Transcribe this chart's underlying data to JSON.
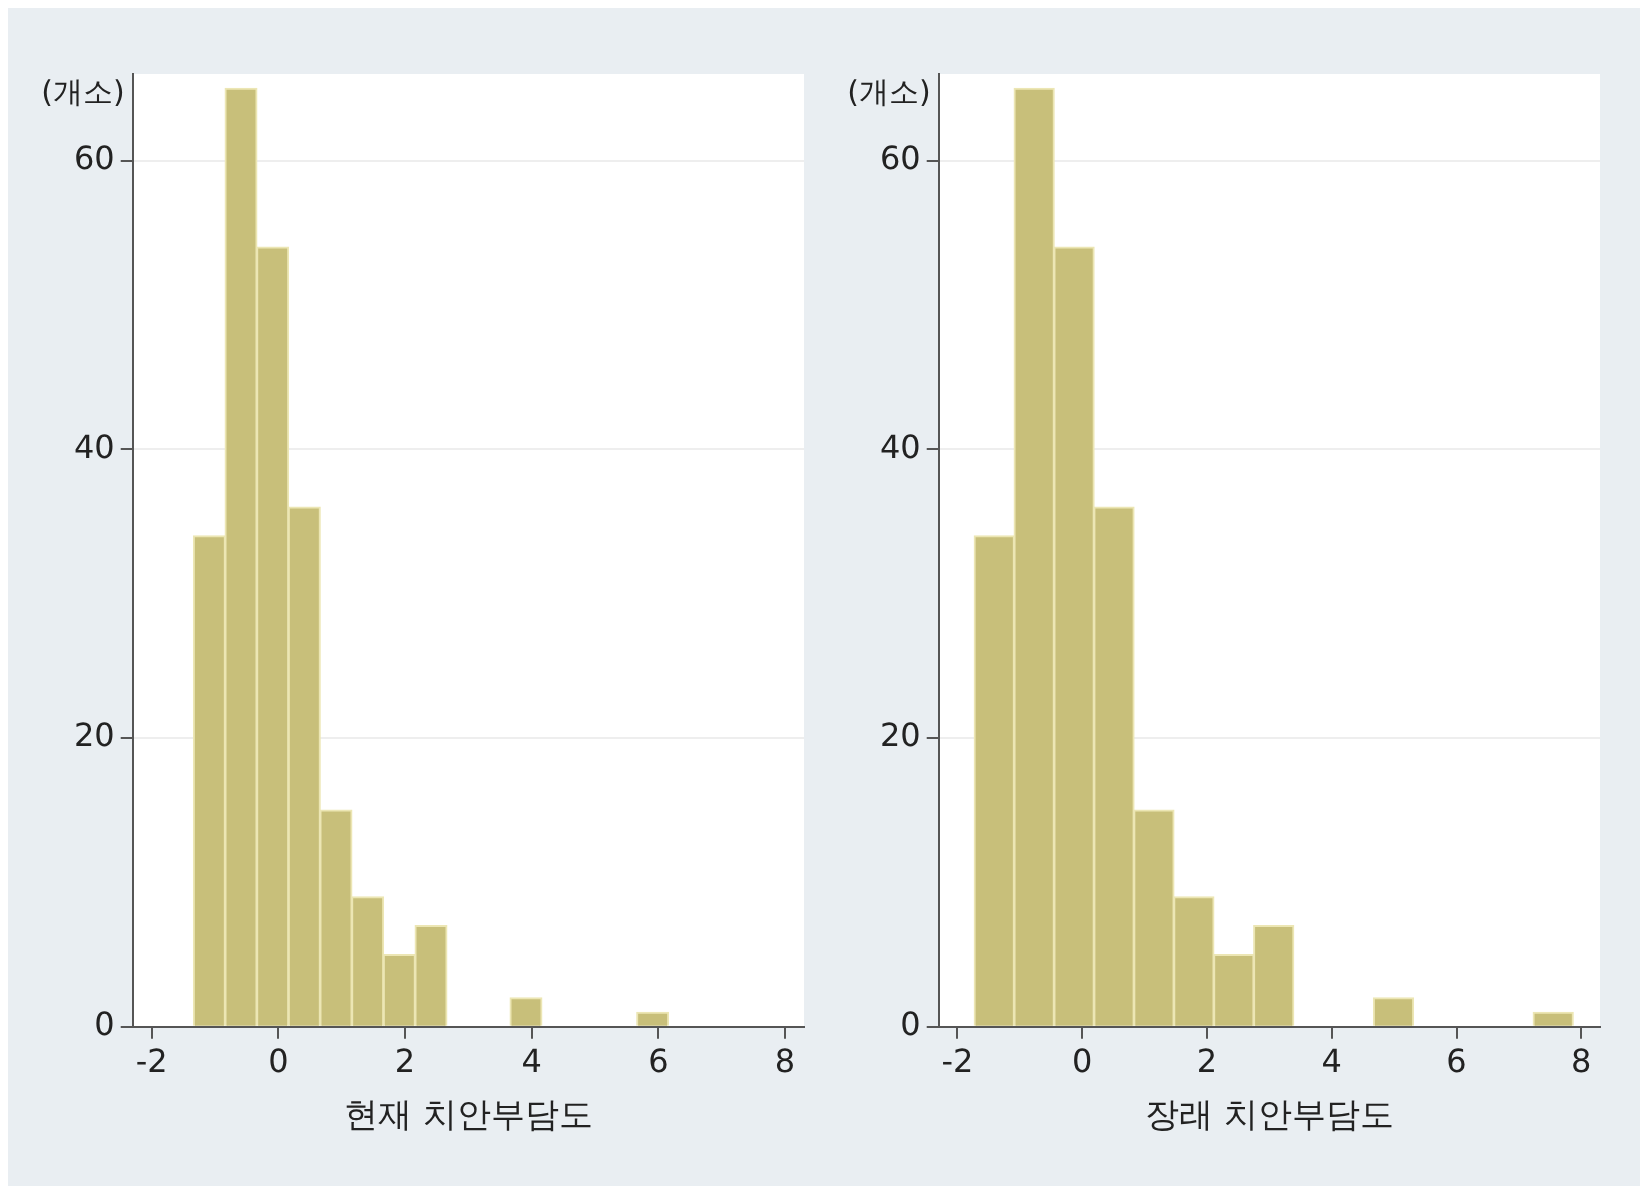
{
  "chart_data": [
    {
      "type": "histogram",
      "xlabel": "현재 치안부담도",
      "ylabel": "(개소)",
      "color": "#c8bf7a",
      "grid": "y",
      "bins": [
        -1.34,
        -0.84,
        -0.34,
        0.16,
        0.66,
        1.16,
        1.66,
        2.16,
        2.66,
        3.16,
        3.66,
        4.16,
        4.66,
        5.16,
        5.66,
        6.16
      ],
      "values": [
        34,
        65,
        54,
        36,
        15,
        9,
        5,
        7,
        0,
        0,
        2,
        0,
        0,
        0,
        1
      ],
      "xlim": [
        -2.3,
        8.3
      ],
      "xticks": [
        -2,
        0,
        2,
        4,
        6,
        8
      ],
      "ylim": [
        0,
        66
      ],
      "yticks": [
        0,
        20,
        40,
        60
      ]
    },
    {
      "type": "histogram",
      "xlabel": "장래 치안부담도",
      "ylabel": "(개소)",
      "color": "#c8bf7a",
      "grid": "y",
      "bins": [
        -1.73,
        -1.09,
        -0.45,
        0.19,
        0.83,
        1.47,
        2.11,
        2.75,
        3.39,
        4.03,
        4.67,
        5.31,
        5.95,
        6.59,
        7.23,
        7.87
      ],
      "values": [
        34,
        65,
        54,
        36,
        15,
        9,
        5,
        7,
        0,
        0,
        2,
        0,
        0,
        0,
        1
      ],
      "xlim": [
        -2.3,
        8.3
      ],
      "xticks": [
        -2,
        0,
        2,
        4,
        6,
        8
      ],
      "ylim": [
        0,
        66
      ],
      "yticks": [
        0,
        20,
        40,
        60
      ]
    }
  ]
}
